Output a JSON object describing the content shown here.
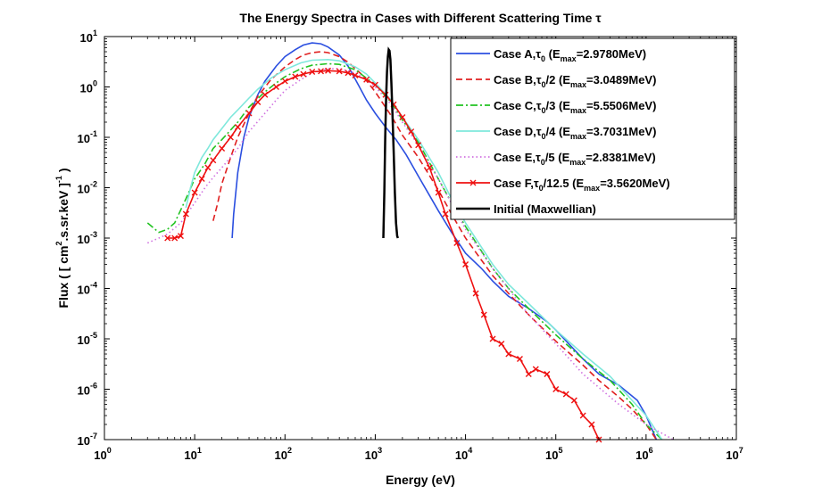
{
  "chart_data": {
    "type": "line",
    "title": "The Energy Spectra in Cases with Different  Scattering Time",
    "title_symbol": "τ",
    "xlabel": "Energy (eV)",
    "ylabel": "Flux ( [ cm²·s·sr·keV ]⁻¹ )",
    "ylabel_parts": [
      "Flux ( [ cm",
      "2",
      ".s.sr.keV ]",
      "-1",
      " )"
    ],
    "xscale": "log",
    "yscale": "log",
    "xlim": [
      1,
      10000000
    ],
    "ylim": [
      1e-07,
      10
    ],
    "x_ticks": [
      {
        "base": "10",
        "exp": "0",
        "value": 1
      },
      {
        "base": "10",
        "exp": "1",
        "value": 10
      },
      {
        "base": "10",
        "exp": "2",
        "value": 100
      },
      {
        "base": "10",
        "exp": "3",
        "value": 1000
      },
      {
        "base": "10",
        "exp": "4",
        "value": 10000
      },
      {
        "base": "10",
        "exp": "5",
        "value": 100000
      },
      {
        "base": "10",
        "exp": "6",
        "value": 1000000
      },
      {
        "base": "10",
        "exp": "7",
        "value": 10000000
      }
    ],
    "y_ticks": [
      {
        "base": "10",
        "exp": "1",
        "value": 10
      },
      {
        "base": "10",
        "exp": "0",
        "value": 1
      },
      {
        "base": "10",
        "exp": "-1",
        "value": 0.1
      },
      {
        "base": "10",
        "exp": "-2",
        "value": 0.01
      },
      {
        "base": "10",
        "exp": "-3",
        "value": 0.001
      },
      {
        "base": "10",
        "exp": "-4",
        "value": 0.0001
      },
      {
        "base": "10",
        "exp": "-5",
        "value": 1e-05
      },
      {
        "base": "10",
        "exp": "-6",
        "value": 1e-06
      },
      {
        "base": "10",
        "exp": "-7",
        "value": 1e-07
      }
    ],
    "legend_position": "top-right",
    "series": [
      {
        "name": "Case A,τ0  (Emax=2.9780MeV)",
        "legend_parts": [
          "Case A,",
          "τ",
          "0",
          "  (E",
          "max",
          "=2.9780MeV)"
        ],
        "color": "#2b4fe0",
        "style": "solid",
        "marker": "none",
        "x": [
          26,
          27,
          30,
          35,
          40,
          50,
          60,
          80,
          100,
          130,
          160,
          200,
          250,
          300,
          400,
          500,
          650,
          800,
          1000,
          1300,
          1700,
          2200,
          3000,
          4000,
          5000,
          7000,
          10000,
          15000,
          20000,
          30000,
          50000,
          80000,
          100000,
          200000,
          300000,
          500000,
          800000,
          1000000,
          1300000
        ],
        "y": [
          0.001,
          0.003,
          0.02,
          0.1,
          0.25,
          0.7,
          1.3,
          2.6,
          4,
          5.5,
          6.8,
          7.5,
          7.2,
          6.2,
          4.3,
          2.6,
          1.1,
          0.55,
          0.3,
          0.16,
          0.09,
          0.045,
          0.017,
          0.007,
          0.0035,
          0.0013,
          0.0005,
          0.00025,
          0.00014,
          7e-05,
          4e-05,
          2.2e-05,
          1.5e-05,
          4e-06,
          2e-06,
          1.2e-06,
          6e-07,
          3e-07,
          1e-07
        ]
      },
      {
        "name": "Case B,τ0/2  (Emax=3.0489MeV)",
        "legend_parts": [
          "Case B,",
          "τ",
          "0",
          "/2  (E",
          "max",
          "=3.0489MeV)"
        ],
        "color": "#e02020",
        "style": "dashed",
        "marker": "none",
        "x": [
          16,
          18,
          20,
          25,
          30,
          40,
          50,
          70,
          100,
          130,
          160,
          200,
          250,
          300,
          400,
          500,
          700,
          1000,
          1500,
          2000,
          3000,
          5000,
          7000,
          10000,
          20000,
          30000,
          50000,
          100000,
          200000,
          300000,
          500000,
          700000,
          1000000,
          1300000
        ],
        "y": [
          0.0022,
          0.005,
          0.012,
          0.04,
          0.1,
          0.3,
          0.65,
          1.4,
          2.5,
          3.5,
          4.3,
          4.8,
          5,
          4.8,
          4,
          3.1,
          1.8,
          0.8,
          0.27,
          0.11,
          0.04,
          0.009,
          0.003,
          0.001,
          0.00018,
          8e-05,
          3e-05,
          9e-06,
          3e-06,
          1.5e-06,
          7e-07,
          4e-07,
          2e-07,
          1e-07
        ]
      },
      {
        "name": "Case C,τ0/3  (Emax=5.5506MeV)",
        "legend_parts": [
          "Case C,",
          "τ",
          "0",
          "/3  (E",
          "max",
          "=5.5506MeV)"
        ],
        "color": "#22c322",
        "style": "dashdot",
        "marker": "none",
        "x": [
          3,
          4,
          5,
          6,
          8,
          10,
          13,
          16,
          20,
          30,
          40,
          60,
          80,
          100,
          150,
          200,
          300,
          400,
          600,
          800,
          1000,
          1500,
          2000,
          3000,
          5000,
          7000,
          10000,
          20000,
          30000,
          50000,
          100000,
          200000,
          400000,
          700000,
          1000000,
          1500000
        ],
        "y": [
          0.002,
          0.0013,
          0.0015,
          0.002,
          0.006,
          0.015,
          0.03,
          0.06,
          0.09,
          0.2,
          0.4,
          0.8,
          1.2,
          1.6,
          2.3,
          2.7,
          2.9,
          2.8,
          2.2,
          1.5,
          1.1,
          0.5,
          0.22,
          0.08,
          0.015,
          0.005,
          0.0017,
          0.00025,
          0.0001,
          4e-05,
          1.2e-05,
          4e-06,
          1.5e-06,
          5e-07,
          2e-07,
          1e-07
        ]
      },
      {
        "name": "Case D,τ0/4  (Emax=3.7031MeV)",
        "legend_parts": [
          "Case D,",
          "τ",
          "0",
          "/4  (E",
          "max",
          "=3.7031MeV)"
        ],
        "color": "#7fe8dc",
        "style": "solid",
        "marker": "none",
        "x": [
          8,
          9,
          10,
          12,
          14,
          16,
          20,
          25,
          30,
          40,
          50,
          70,
          100,
          150,
          200,
          300,
          400,
          600,
          800,
          1000,
          1500,
          2000,
          3000,
          5000,
          7000,
          10000,
          20000,
          30000,
          50000,
          100000,
          200000,
          400000,
          700000,
          1000000,
          1500000
        ],
        "y": [
          0.004,
          0.01,
          0.02,
          0.04,
          0.06,
          0.09,
          0.15,
          0.25,
          0.35,
          0.6,
          0.9,
          1.5,
          2.2,
          3,
          3.4,
          3.5,
          3.3,
          2.5,
          1.8,
          1.2,
          0.55,
          0.25,
          0.09,
          0.02,
          0.006,
          0.002,
          0.0003,
          0.00012,
          5e-05,
          1.5e-05,
          5e-06,
          1.8e-06,
          6e-07,
          3e-07,
          1e-07
        ]
      },
      {
        "name": "Case E,τ0/5  (Emax=2.8381MeV)",
        "legend_parts": [
          "Case E,",
          "τ",
          "0",
          "/5  (E",
          "max",
          "=2.8381MeV)"
        ],
        "color": "#d070e0",
        "style": "dotted",
        "marker": "none",
        "x": [
          3,
          4,
          5,
          7,
          10,
          13,
          16,
          20,
          30,
          40,
          60,
          80,
          100,
          150,
          200,
          300,
          400,
          600,
          800,
          1000,
          1500,
          2000,
          3000,
          5000,
          10000,
          20000,
          50000,
          100000,
          200000,
          500000,
          1000000,
          2000000
        ],
        "y": [
          0.0008,
          0.001,
          0.0012,
          0.002,
          0.005,
          0.01,
          0.016,
          0.025,
          0.06,
          0.13,
          0.3,
          0.55,
          0.85,
          1.4,
          1.9,
          2.3,
          2.3,
          1.9,
          1.4,
          1,
          0.45,
          0.2,
          0.07,
          0.015,
          0.0015,
          0.00025,
          3e-05,
          8e-06,
          2e-06,
          5e-07,
          2e-07,
          1e-07
        ]
      },
      {
        "name": "Case F,τ0/12.5  (Emax=3.5620MeV)",
        "legend_parts": [
          "Case F,",
          "τ",
          "0",
          "/12.5  (E",
          "max",
          "=3.5620MeV)"
        ],
        "color": "#ee1010",
        "style": "solid",
        "marker": "x",
        "x": [
          5,
          6,
          7,
          8,
          10,
          12,
          14,
          16,
          20,
          25,
          30,
          40,
          50,
          60,
          80,
          100,
          130,
          160,
          200,
          250,
          300,
          400,
          500,
          600,
          800,
          1000,
          1300,
          1600,
          2000,
          2500,
          3000,
          4000,
          5000,
          6000,
          8000,
          10000,
          13000,
          16000,
          20000,
          25000,
          30000,
          40000,
          50000,
          60000,
          80000,
          100000,
          130000,
          160000,
          200000,
          250000,
          300000
        ],
        "y": [
          0.001,
          0.001,
          0.0011,
          0.003,
          0.008,
          0.015,
          0.025,
          0.035,
          0.06,
          0.1,
          0.16,
          0.3,
          0.5,
          0.7,
          1,
          1.3,
          1.6,
          1.8,
          2,
          2.05,
          2.1,
          2.05,
          1.9,
          1.7,
          1.4,
          1.1,
          0.7,
          0.45,
          0.25,
          0.13,
          0.07,
          0.025,
          0.008,
          0.003,
          0.0008,
          0.0003,
          8e-05,
          3e-05,
          1e-05,
          8e-06,
          5e-06,
          4e-06,
          2e-06,
          2.5e-06,
          2e-06,
          1e-06,
          8e-07,
          6e-07,
          3e-07,
          2e-07,
          1e-07
        ]
      },
      {
        "name": "Initial (Maxwellian)",
        "legend_parts": [
          "Initial (Maxwellian)",
          "",
          "",
          "",
          "",
          ""
        ],
        "color": "#000000",
        "style": "solid",
        "marker": "none",
        "x": [
          1230,
          1260,
          1290,
          1320,
          1350,
          1380,
          1410,
          1440,
          1470,
          1510,
          1550,
          1600,
          1650,
          1700,
          1750,
          1780
        ],
        "y": [
          0.001,
          0.008,
          0.1,
          0.6,
          2,
          4,
          5.5,
          5.2,
          3.5,
          1.2,
          0.3,
          0.05,
          0.008,
          0.002,
          0.0011,
          0.001
        ]
      }
    ]
  }
}
